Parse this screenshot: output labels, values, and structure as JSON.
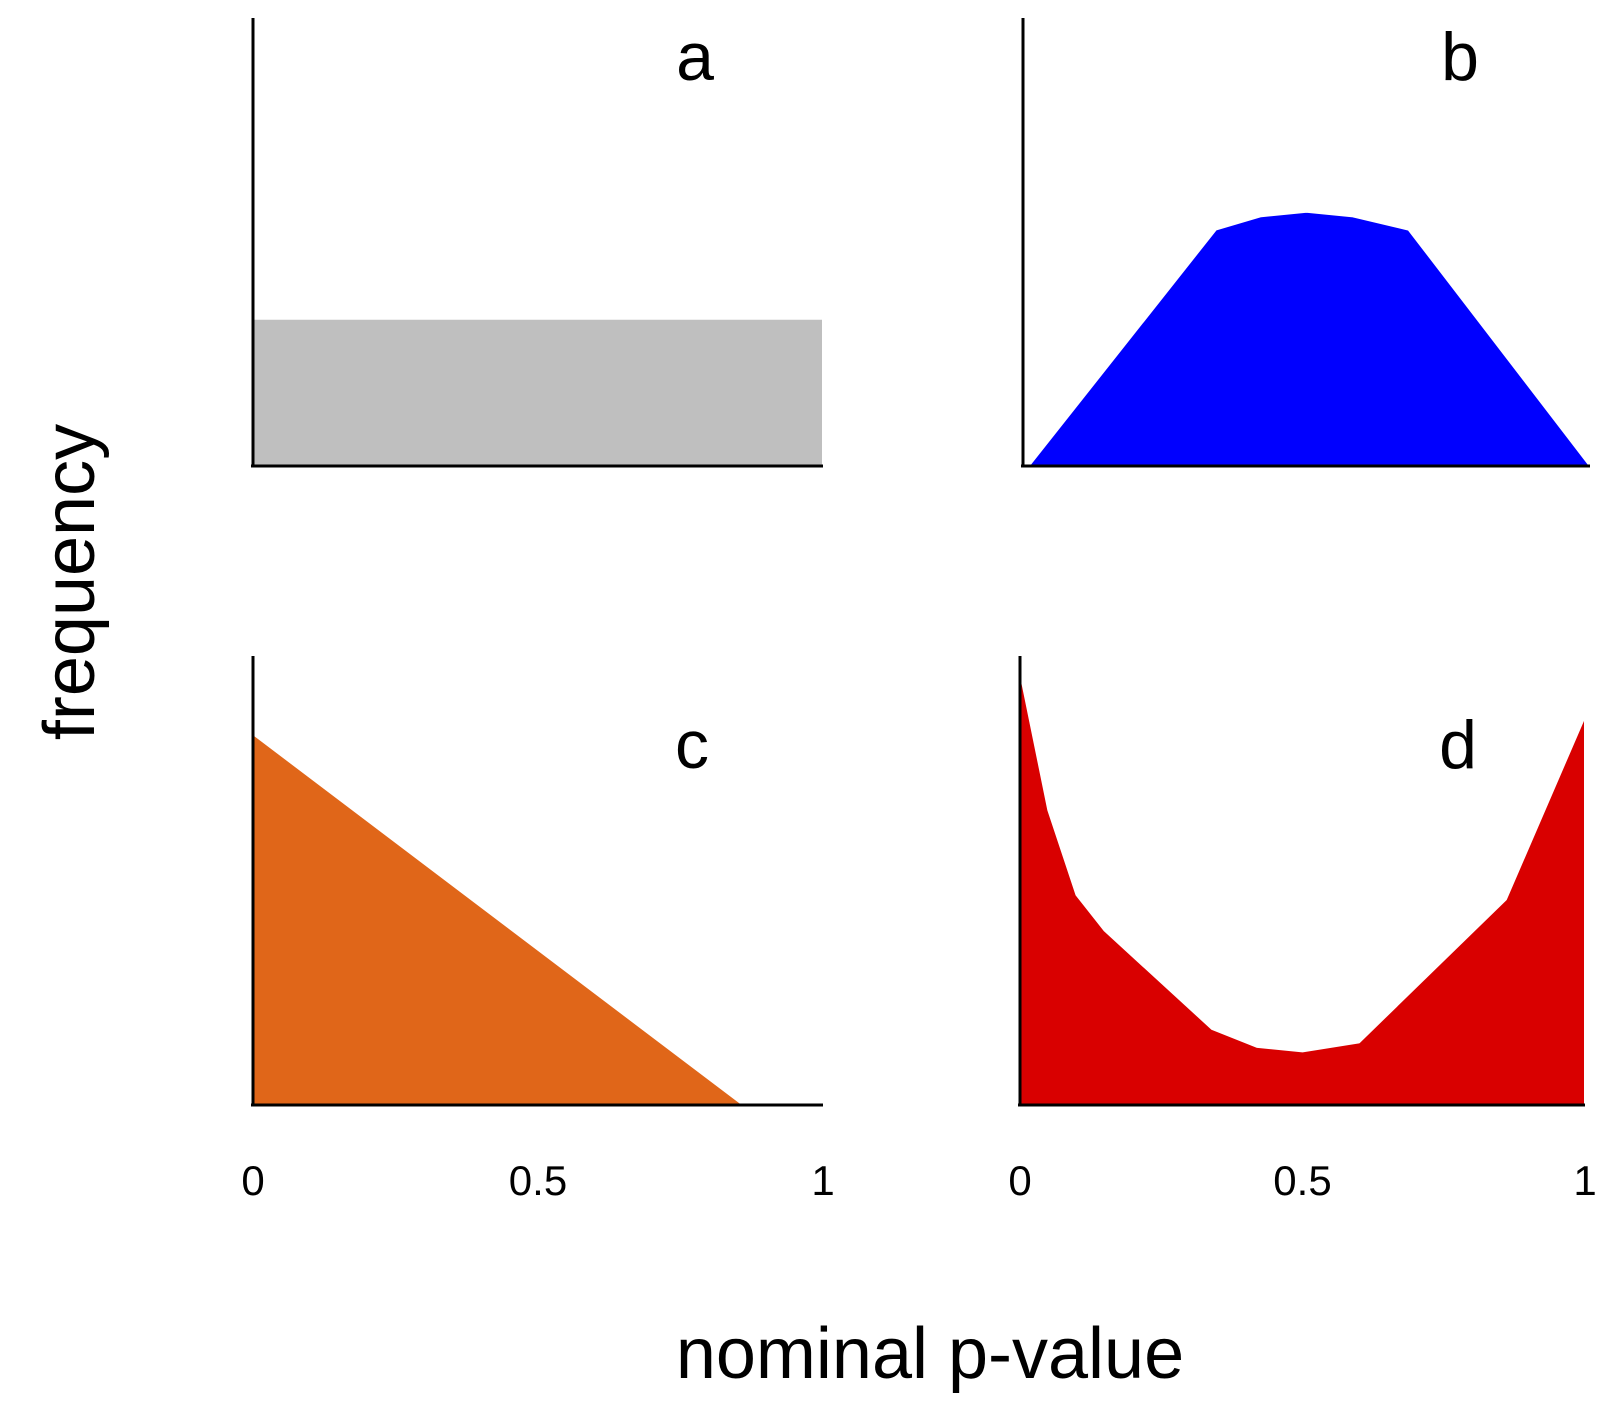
{
  "figure": {
    "xlabel": "nominal p-value",
    "ylabel": "frequency"
  },
  "chart_data": [
    {
      "type": "area",
      "panel": "a",
      "color": "#bfbfbf",
      "xlim": [
        0,
        1
      ],
      "ylim": [
        0,
        1
      ],
      "x": [
        0,
        0,
        1,
        1
      ],
      "y": [
        0,
        0.33,
        0.33,
        0
      ],
      "xticks": [],
      "xtick_labels": []
    },
    {
      "type": "area",
      "panel": "b",
      "color": "#0000ff",
      "xlim": [
        0,
        1
      ],
      "ylim": [
        0,
        1
      ],
      "x": [
        0.01,
        0.34,
        0.42,
        0.5,
        0.58,
        0.68,
        1
      ],
      "y": [
        0,
        0.53,
        0.56,
        0.57,
        0.56,
        0.53,
        0
      ],
      "xticks": [],
      "xtick_labels": []
    },
    {
      "type": "area",
      "panel": "c",
      "color": "#e06619",
      "xlim": [
        0,
        1
      ],
      "ylim": [
        0,
        1
      ],
      "x": [
        0,
        0,
        0.86
      ],
      "y": [
        0,
        0.83,
        0
      ],
      "xticks": [
        0,
        0.5,
        1
      ],
      "xtick_labels": [
        "0",
        "0.5",
        "1"
      ]
    },
    {
      "type": "area",
      "panel": "d",
      "color": "#d90000",
      "xlim": [
        0,
        1
      ],
      "ylim": [
        0,
        1
      ],
      "x": [
        0,
        0,
        0.05,
        0.1,
        0.15,
        0.34,
        0.42,
        0.5,
        0.6,
        0.86,
        1,
        1
      ],
      "y": [
        0,
        0.97,
        0.66,
        0.47,
        0.39,
        0.17,
        0.13,
        0.12,
        0.14,
        0.46,
        0.87,
        0
      ],
      "xticks": [
        0,
        0.5,
        1
      ],
      "xtick_labels": [
        "0",
        "0.5",
        "1"
      ]
    }
  ]
}
